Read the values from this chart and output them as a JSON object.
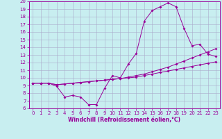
{
  "xlabel": "Windchill (Refroidissement éolien,°C)",
  "bg_color": "#c8eef0",
  "line_color": "#990099",
  "grid_color": "#aaaacc",
  "xmin": -0.5,
  "xmax": 23.5,
  "ymin": 6,
  "ymax": 20,
  "line1_x": [
    0,
    1,
    2,
    3,
    4,
    5,
    6,
    7,
    8,
    9,
    10,
    11,
    12,
    13,
    14,
    15,
    16,
    17,
    18,
    19,
    20,
    21,
    22,
    23
  ],
  "line1_y": [
    9.3,
    9.3,
    9.3,
    8.9,
    7.5,
    7.7,
    7.5,
    6.5,
    6.5,
    8.6,
    10.3,
    10.0,
    11.8,
    13.2,
    17.4,
    18.8,
    19.3,
    19.8,
    19.3,
    16.5,
    14.2,
    14.4,
    13.1,
    12.8
  ],
  "line2_x": [
    0,
    1,
    2,
    3,
    4,
    5,
    6,
    7,
    8,
    9,
    10,
    11,
    12,
    13,
    14,
    15,
    16,
    17,
    18,
    19,
    20,
    21,
    22,
    23
  ],
  "line2_y": [
    9.3,
    9.3,
    9.3,
    9.1,
    9.2,
    9.3,
    9.4,
    9.5,
    9.6,
    9.7,
    9.8,
    9.9,
    10.1,
    10.3,
    10.5,
    10.8,
    11.1,
    11.4,
    11.8,
    12.2,
    12.6,
    13.0,
    13.4,
    13.8
  ],
  "line3_x": [
    0,
    1,
    2,
    3,
    4,
    5,
    6,
    7,
    8,
    9,
    10,
    11,
    12,
    13,
    14,
    15,
    16,
    17,
    18,
    19,
    20,
    21,
    22,
    23
  ],
  "line3_y": [
    9.3,
    9.3,
    9.3,
    9.1,
    9.2,
    9.3,
    9.4,
    9.5,
    9.6,
    9.7,
    9.8,
    9.9,
    10.0,
    10.1,
    10.3,
    10.5,
    10.7,
    10.9,
    11.1,
    11.3,
    11.5,
    11.7,
    11.9,
    12.1
  ],
  "yticks": [
    6,
    7,
    8,
    9,
    10,
    11,
    12,
    13,
    14,
    15,
    16,
    17,
    18,
    19,
    20
  ],
  "xticks": [
    0,
    1,
    2,
    3,
    4,
    5,
    6,
    7,
    8,
    9,
    10,
    11,
    12,
    13,
    14,
    15,
    16,
    17,
    18,
    19,
    20,
    21,
    22,
    23
  ],
  "xlabel_fontsize": 5.5,
  "tick_fontsize": 5.0,
  "marker_size": 2.0,
  "line_width": 0.7
}
